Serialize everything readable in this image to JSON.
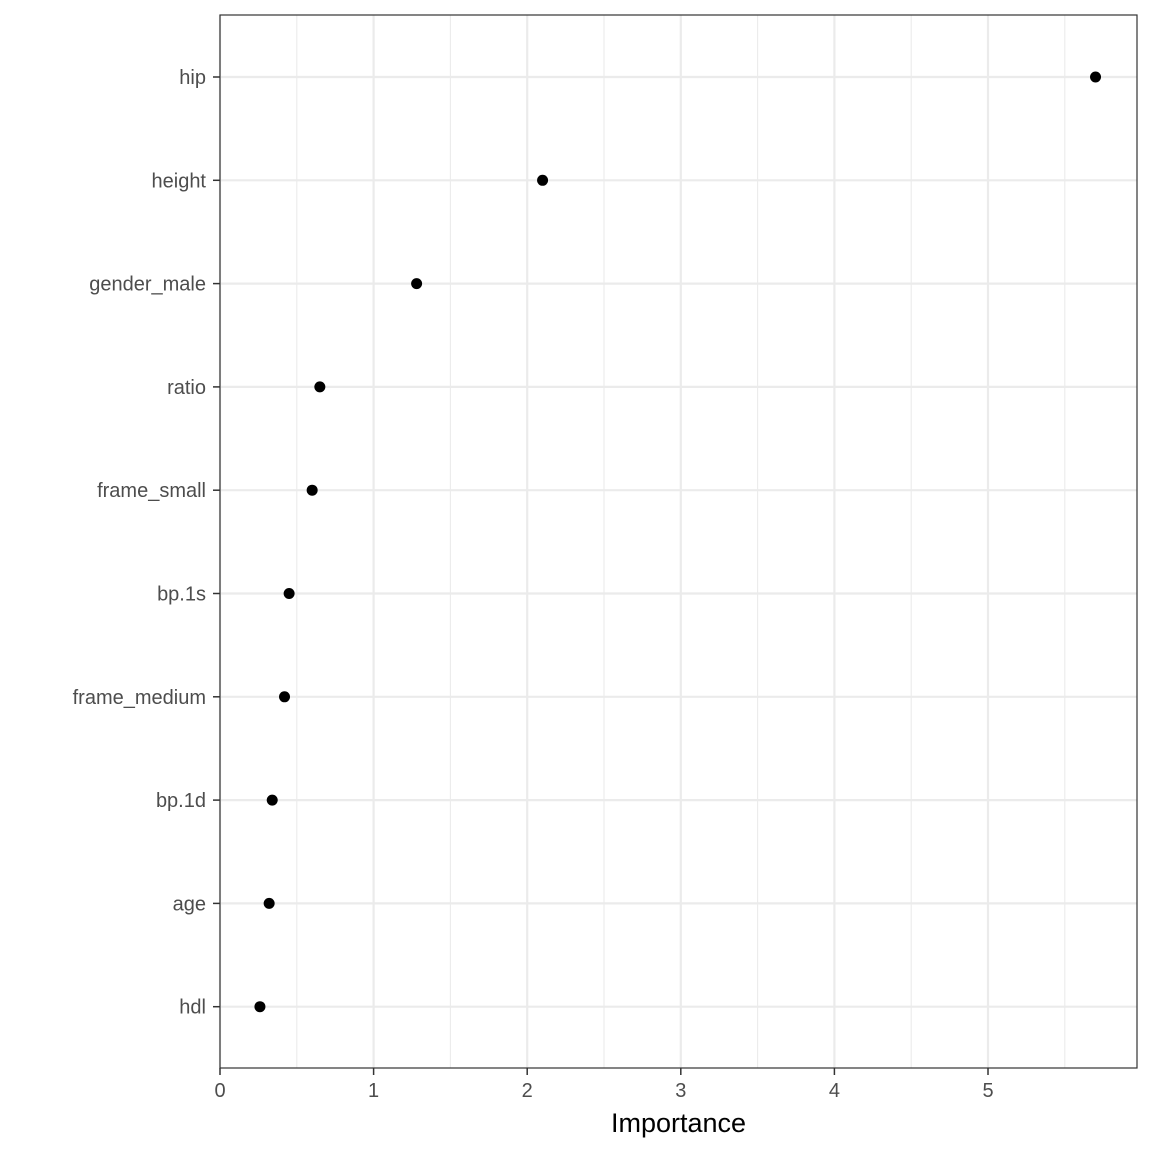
{
  "chart_data": {
    "type": "scatter",
    "title": "",
    "xlabel": "Importance",
    "ylabel": "",
    "xlim": [
      0,
      5.97
    ],
    "x_ticks": [
      0,
      1,
      2,
      3,
      4,
      5
    ],
    "x_tick_labels": [
      "0",
      "1",
      "2",
      "3",
      "4",
      "5"
    ],
    "grid": true,
    "legend": "none",
    "categories": [
      "hip",
      "height",
      "gender_male",
      "ratio",
      "frame_small",
      "bp.1s",
      "frame_medium",
      "bp.1d",
      "age",
      "hdl"
    ],
    "values": [
      5.7,
      2.1,
      1.28,
      0.65,
      0.6,
      0.45,
      0.42,
      0.34,
      0.32,
      0.26
    ],
    "colors": {
      "point": "#000000",
      "grid": "#ebebeb",
      "panel_border": "#333333",
      "tick_text": "#4d4d4d",
      "background": "#ffffff"
    }
  }
}
